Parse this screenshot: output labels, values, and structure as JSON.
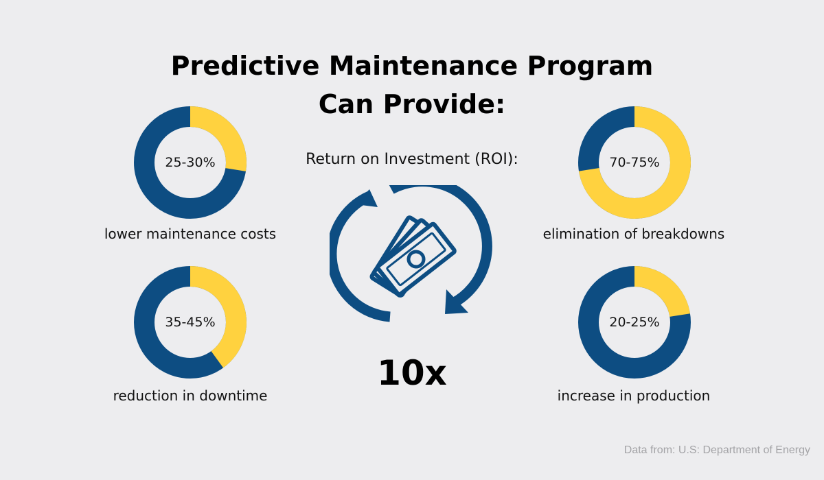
{
  "title_lines": [
    "Predictive Maintenance Program",
    "Can Provide:"
  ],
  "colors": {
    "primary": "#0d4d82",
    "accent": "#ffd23f",
    "background": "#ededef"
  },
  "chart_data": [
    {
      "type": "pie",
      "value_label": "25-30%",
      "fraction": 0.275,
      "caption": "lower maintenance costs"
    },
    {
      "type": "pie",
      "value_label": "35-45%",
      "fraction": 0.4,
      "caption": "reduction in downtime"
    },
    {
      "type": "pie",
      "value_label": "70-75%",
      "fraction": 0.725,
      "caption": "elimination of breakdowns"
    },
    {
      "type": "pie",
      "value_label": "20-25%",
      "fraction": 0.225,
      "caption": "increase in production"
    }
  ],
  "roi": {
    "label": "Return on Investment (ROI):",
    "value": "10x",
    "icon": "money-cycle-icon"
  },
  "source": "Data from:  U.S: Department of Energy"
}
